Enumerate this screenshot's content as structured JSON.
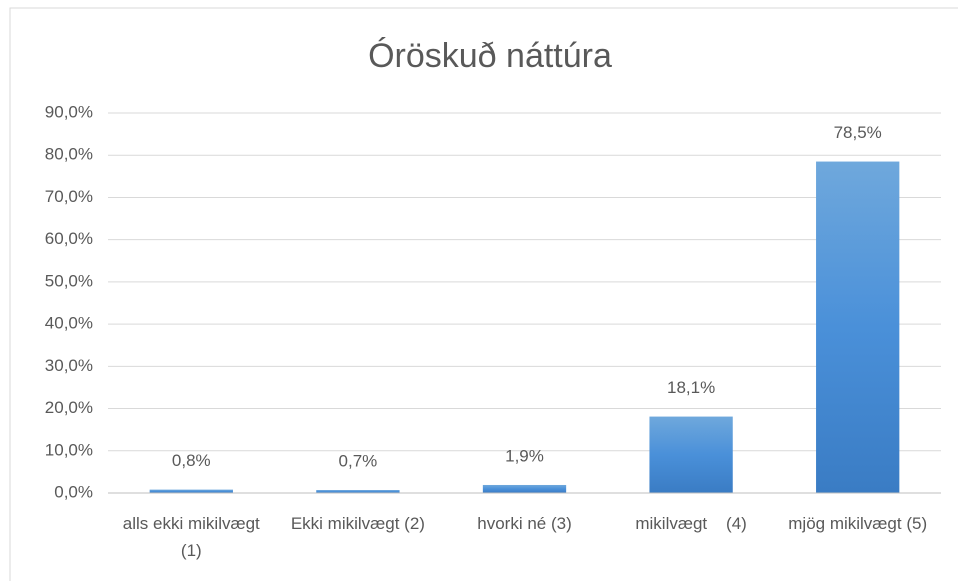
{
  "chart_data": {
    "type": "bar",
    "title": "Óröskuð náttúra",
    "categories": [
      "alls ekki mikilvægt  (1)",
      "Ekki mikilvægt (2)",
      "hvorki né (3)",
      "mikilvægt    (4)",
      "mjög mikilvægt (5)"
    ],
    "values": [
      0.8,
      0.7,
      1.9,
      18.1,
      78.5
    ],
    "value_labels": [
      "0,8%",
      "0,7%",
      "1,9%",
      "18,1%",
      "78,5%"
    ],
    "color": "#5b9bd5",
    "ylim": [
      0,
      90
    ],
    "yticks": [
      {
        "value": 0,
        "label": "0,0%"
      },
      {
        "value": 10,
        "label": "10,0%"
      },
      {
        "value": 20,
        "label": "20,0%"
      },
      {
        "value": 30,
        "label": "30,0%"
      },
      {
        "value": 40,
        "label": "40,0%"
      },
      {
        "value": 50,
        "label": "50,0%"
      },
      {
        "value": 60,
        "label": "60,0%"
      },
      {
        "value": 70,
        "label": "70,0%"
      },
      {
        "value": 80,
        "label": "80,0%"
      },
      {
        "value": 90,
        "label": "90,0%"
      }
    ],
    "grid": true
  }
}
